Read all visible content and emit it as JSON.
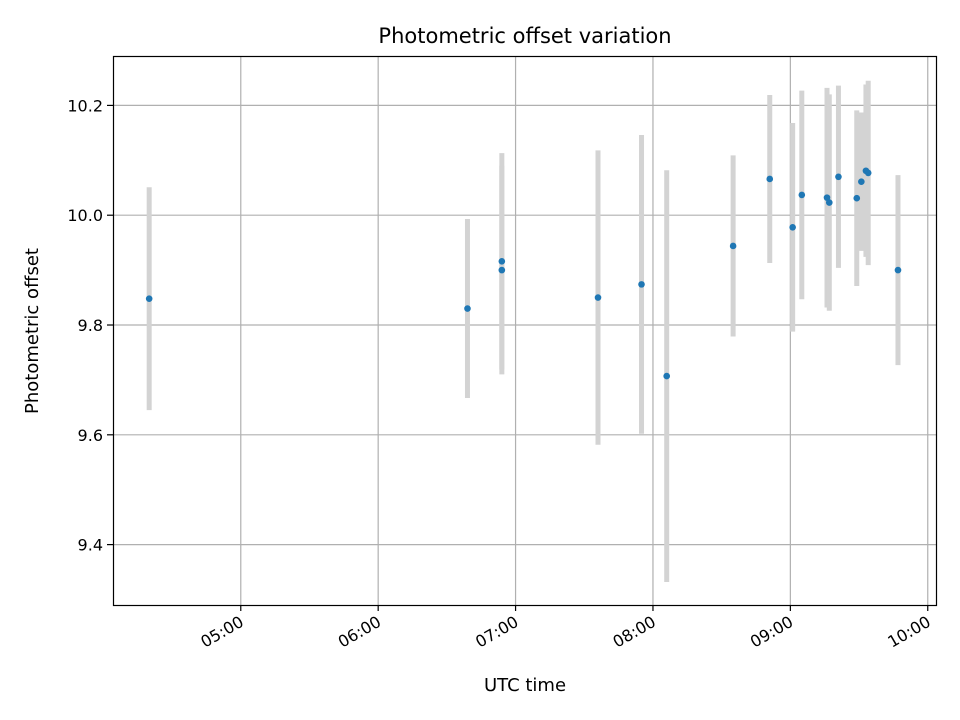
{
  "chart_data": {
    "type": "scatter",
    "title": "Photometric offset variation",
    "xlabel": "UTC time",
    "ylabel": "Photometric offset",
    "x_tick_labels": [
      "05:00",
      "06:00",
      "07:00",
      "08:00",
      "09:00",
      "10:00"
    ],
    "x_tick_hours": [
      5,
      6,
      7,
      8,
      9,
      10
    ],
    "y_ticks": [
      9.4,
      9.6,
      9.8,
      10.0,
      10.2
    ],
    "y_tick_labels": [
      "9.4",
      "9.6",
      "9.8",
      "10.0",
      "10.2"
    ],
    "xlim_hours": [
      4.07,
      10.06
    ],
    "ylim": [
      9.29,
      10.29
    ],
    "grid": true,
    "colors": {
      "point": "#1f77b4",
      "errorbar": "#d3d3d3",
      "grid": "#b0b0b0"
    },
    "series": [
      {
        "points": [
          {
            "t": "04:20",
            "y": 9.848,
            "err": 0.203
          },
          {
            "t": "06:39",
            "y": 9.83,
            "err": 0.163
          },
          {
            "t": "06:54",
            "y": 9.916,
            "err": 0.197
          },
          {
            "t": "06:54",
            "y": 9.9,
            "err": 0.19
          },
          {
            "t": "07:36",
            "y": 9.85,
            "err": 0.268
          },
          {
            "t": "07:55",
            "y": 9.874,
            "err": 0.272
          },
          {
            "t": "08:06",
            "y": 9.707,
            "err": 0.375
          },
          {
            "t": "08:35",
            "y": 9.944,
            "err": 0.165
          },
          {
            "t": "08:51",
            "y": 10.066,
            "err": 0.153
          },
          {
            "t": "09:01",
            "y": 9.978,
            "err": 0.19
          },
          {
            "t": "09:05",
            "y": 10.037,
            "err": 0.19
          },
          {
            "t": "09:16",
            "y": 10.032,
            "err": 0.2
          },
          {
            "t": "09:17",
            "y": 10.023,
            "err": 0.197
          },
          {
            "t": "09:21",
            "y": 10.07,
            "err": 0.166
          },
          {
            "t": "09:29",
            "y": 10.031,
            "err": 0.16
          },
          {
            "t": "09:31",
            "y": 10.061,
            "err": 0.126
          },
          {
            "t": "09:33",
            "y": 10.081,
            "err": 0.157
          },
          {
            "t": "09:34",
            "y": 10.077,
            "err": 0.168
          },
          {
            "t": "09:47",
            "y": 9.9,
            "err": 0.173
          }
        ]
      }
    ]
  }
}
